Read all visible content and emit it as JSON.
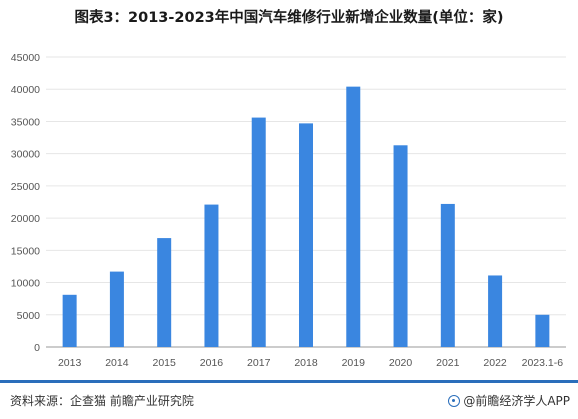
{
  "title": "图表3：2013-2023年中国汽车维修行业新增企业数量(单位：家)",
  "source": "资料来源：企查猫 前瞻产业研究院",
  "brand": "@前瞻经济学人APP",
  "colors": {
    "bar": "#3a86e0",
    "accent": "#2a6ebb"
  },
  "chart_data": {
    "type": "bar",
    "title": "图表3：2013-2023年中国汽车维修行业新增企业数量(单位：家)",
    "categories": [
      "2013",
      "2014",
      "2015",
      "2016",
      "2017",
      "2018",
      "2019",
      "2020",
      "2021",
      "2022",
      "2023.1-6"
    ],
    "values": [
      8100,
      11700,
      16900,
      22100,
      35600,
      34700,
      40400,
      31300,
      22200,
      11100,
      5000
    ],
    "ylim": [
      0,
      45000
    ],
    "yticks": [
      0,
      5000,
      10000,
      15000,
      20000,
      25000,
      30000,
      35000,
      40000,
      45000
    ],
    "grid": true,
    "xlabel": "",
    "ylabel": ""
  }
}
